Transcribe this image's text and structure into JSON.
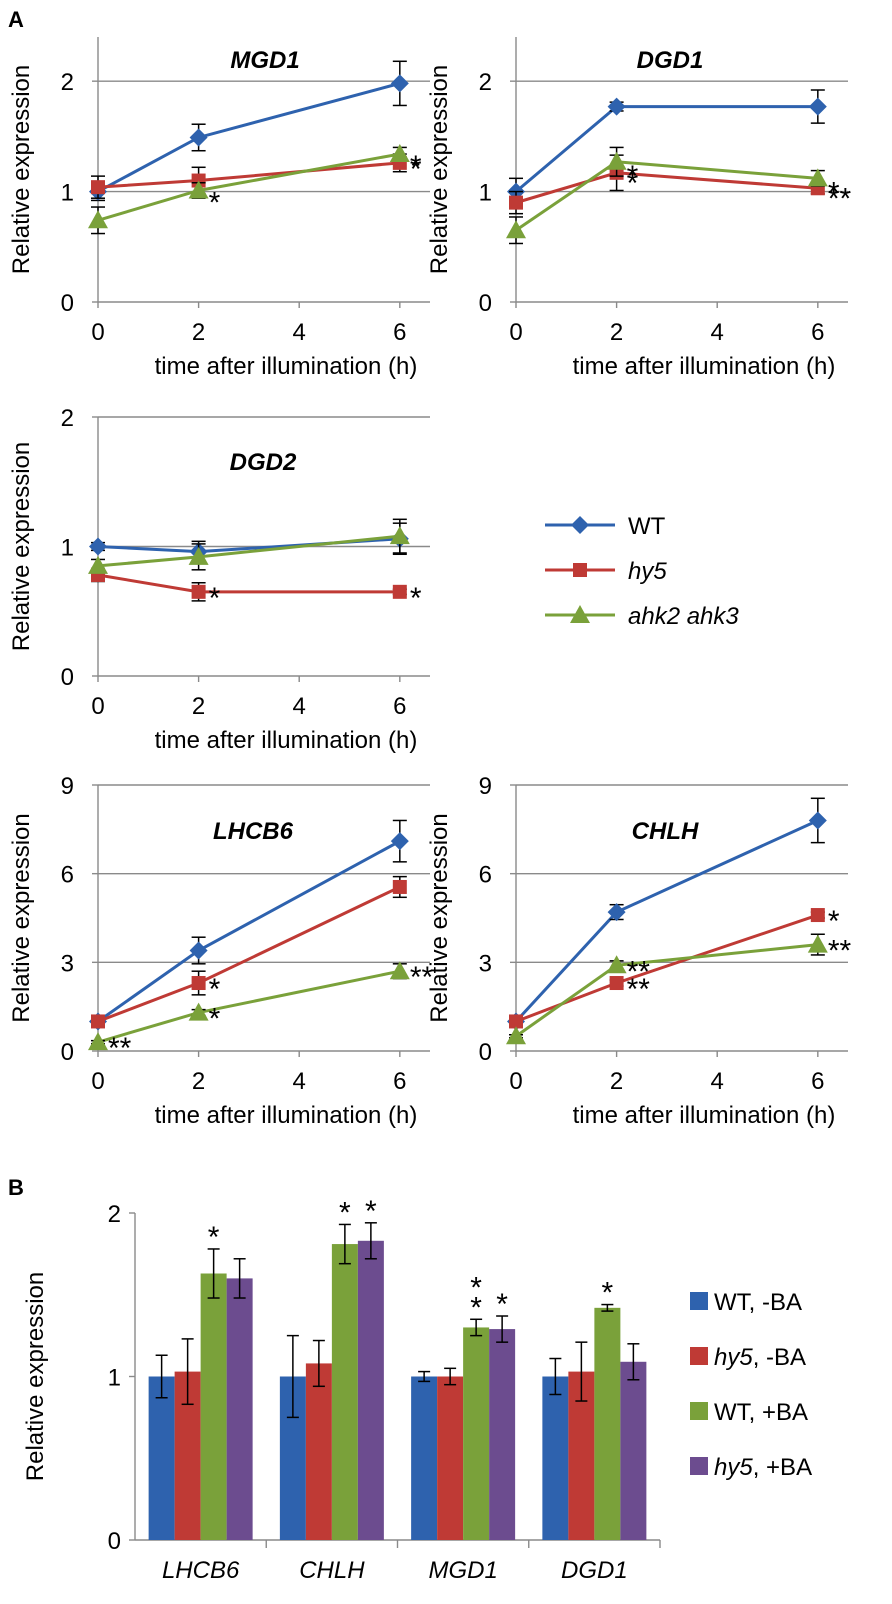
{
  "figure": {
    "panel_a_label": "A",
    "panel_b_label": "B"
  },
  "colors": {
    "wt": "#2e62ae",
    "hy5": "#bf3a35",
    "ahk": "#7aa13a",
    "wt_ba": "#7aa13a",
    "hy5_ba": "#6c4c8f"
  },
  "legend_a": {
    "items": [
      {
        "label": "WT",
        "italic": false,
        "marker": "diamond",
        "color_key": "wt"
      },
      {
        "label": "hy5",
        "italic": true,
        "marker": "square",
        "color_key": "hy5"
      },
      {
        "label": "ahk2 ahk3",
        "italic": true,
        "marker": "triangle",
        "color_key": "ahk"
      }
    ]
  },
  "legend_b": {
    "items": [
      {
        "genotype": "WT",
        "italic": false,
        "treatment": ", -BA",
        "color_key": "wt"
      },
      {
        "genotype": "hy5",
        "italic": true,
        "treatment": ", -BA",
        "color_key": "hy5"
      },
      {
        "genotype": "WT",
        "italic": false,
        "treatment": ", +BA",
        "color_key": "wt_ba"
      },
      {
        "genotype": "hy5",
        "italic": true,
        "treatment": ", +BA",
        "color_key": "hy5_ba"
      }
    ]
  },
  "chart_data": [
    {
      "id": "mgd1",
      "type": "line",
      "title": "MGD1",
      "xlabel": "time after illumination (h)",
      "ylabel": "Relative expression",
      "x": [
        0,
        2,
        6
      ],
      "xticks": [
        0,
        2,
        4,
        6
      ],
      "xlim": [
        0,
        6.6
      ],
      "ylim": [
        0,
        2.4
      ],
      "yticks": [
        0,
        1,
        2
      ],
      "grid": true,
      "series": [
        {
          "name": "WT",
          "color_key": "wt",
          "marker": "diamond",
          "values": [
            1.0,
            1.49,
            1.98
          ],
          "errors": [
            0.08,
            0.12,
            0.2
          ],
          "annotations": [
            "",
            "",
            ""
          ]
        },
        {
          "name": "hy5",
          "color_key": "hy5",
          "marker": "square",
          "values": [
            1.04,
            1.1,
            1.26
          ],
          "errors": [
            0.1,
            0.12,
            0.08
          ],
          "annotations": [
            "",
            "",
            "*"
          ]
        },
        {
          "name": "ahk2 ahk3",
          "color_key": "ahk",
          "marker": "triangle",
          "values": [
            0.74,
            1.01,
            1.34
          ],
          "errors": [
            0.12,
            0.07,
            0.06
          ],
          "annotations": [
            "",
            "*",
            "*"
          ]
        }
      ]
    },
    {
      "id": "dgd1",
      "type": "line",
      "title": "DGD1",
      "xlabel": "time after illumination (h)",
      "ylabel": "Relative expression",
      "x": [
        0,
        2,
        6
      ],
      "xticks": [
        0,
        2,
        4,
        6
      ],
      "xlim": [
        0,
        6.6
      ],
      "ylim": [
        0,
        2.4
      ],
      "yticks": [
        0,
        1,
        2
      ],
      "grid": true,
      "series": [
        {
          "name": "WT",
          "color_key": "wt",
          "marker": "diamond",
          "values": [
            1.0,
            1.77,
            1.77
          ],
          "errors": [
            0.12,
            0.04,
            0.15
          ],
          "annotations": [
            "",
            "",
            ""
          ]
        },
        {
          "name": "hy5",
          "color_key": "hy5",
          "marker": "square",
          "values": [
            0.9,
            1.17,
            1.03
          ],
          "errors": [
            0.1,
            0.16,
            0.05
          ],
          "annotations": [
            "",
            "*",
            "**"
          ]
        },
        {
          "name": "ahk2 ahk3",
          "color_key": "ahk",
          "marker": "triangle",
          "values": [
            0.65,
            1.27,
            1.12
          ],
          "errors": [
            0.12,
            0.13,
            0.07
          ],
          "annotations": [
            "",
            "*",
            "*"
          ]
        }
      ]
    },
    {
      "id": "dgd2",
      "type": "line",
      "title": "DGD2",
      "xlabel": "time after illumination (h)",
      "ylabel": "Relative expression",
      "x": [
        0,
        2,
        6
      ],
      "xticks": [
        0,
        2,
        4,
        6
      ],
      "xlim": [
        0,
        6.6
      ],
      "ylim": [
        0,
        2.0
      ],
      "yticks": [
        0,
        1,
        2
      ],
      "grid": true,
      "series": [
        {
          "name": "WT",
          "color_key": "wt",
          "marker": "diamond",
          "values": [
            1.0,
            0.96,
            1.06
          ],
          "errors": [
            0.03,
            0.08,
            0.12
          ],
          "annotations": [
            "",
            "",
            ""
          ]
        },
        {
          "name": "hy5",
          "color_key": "hy5",
          "marker": "square",
          "values": [
            0.78,
            0.65,
            0.65
          ],
          "errors": [
            0.05,
            0.07,
            0.02
          ],
          "annotations": [
            "",
            "*",
            "*"
          ]
        },
        {
          "name": "ahk2 ahk3",
          "color_key": "ahk",
          "marker": "triangle",
          "values": [
            0.85,
            0.92,
            1.08
          ],
          "errors": [
            0.05,
            0.1,
            0.13
          ],
          "annotations": [
            "",
            "",
            ""
          ]
        }
      ]
    },
    {
      "id": "lhcb6",
      "type": "line",
      "title": "LHCB6",
      "xlabel": "time after illumination (h)",
      "ylabel": "Relative expression",
      "x": [
        0,
        2,
        6
      ],
      "xticks": [
        0,
        2,
        4,
        6
      ],
      "xlim": [
        0,
        6.6
      ],
      "ylim": [
        0,
        9
      ],
      "yticks": [
        0,
        3,
        6,
        9
      ],
      "grid": true,
      "series": [
        {
          "name": "WT",
          "color_key": "wt",
          "marker": "diamond",
          "values": [
            1.0,
            3.4,
            7.1
          ],
          "errors": [
            0.1,
            0.45,
            0.7
          ],
          "annotations": [
            "",
            "",
            ""
          ]
        },
        {
          "name": "hy5",
          "color_key": "hy5",
          "marker": "square",
          "values": [
            1.0,
            2.3,
            5.55
          ],
          "errors": [
            0.1,
            0.4,
            0.35
          ],
          "annotations": [
            "",
            "*",
            ""
          ]
        },
        {
          "name": "ahk2 ahk3",
          "color_key": "ahk",
          "marker": "triangle",
          "values": [
            0.3,
            1.3,
            2.7
          ],
          "errors": [
            0.05,
            0.1,
            0.25
          ],
          "annotations": [
            "**",
            "*",
            "**"
          ]
        }
      ]
    },
    {
      "id": "chlh",
      "type": "line",
      "title": "CHLH",
      "xlabel": "time after illumination (h)",
      "ylabel": "Relative expression",
      "x": [
        0,
        2,
        6
      ],
      "xticks": [
        0,
        2,
        4,
        6
      ],
      "xlim": [
        0,
        6.6
      ],
      "ylim": [
        0,
        9
      ],
      "yticks": [
        0,
        3,
        6,
        9
      ],
      "grid": true,
      "series": [
        {
          "name": "WT",
          "color_key": "wt",
          "marker": "diamond",
          "values": [
            1.0,
            4.7,
            7.8
          ],
          "errors": [
            0.1,
            0.25,
            0.75
          ],
          "annotations": [
            "",
            "",
            ""
          ]
        },
        {
          "name": "hy5",
          "color_key": "hy5",
          "marker": "square",
          "values": [
            1.0,
            2.3,
            4.6
          ],
          "errors": [
            0.1,
            0.1,
            0.1
          ],
          "annotations": [
            "",
            "**",
            "*"
          ]
        },
        {
          "name": "ahk2 ahk3",
          "color_key": "ahk",
          "marker": "triangle",
          "values": [
            0.5,
            2.9,
            3.6
          ],
          "errors": [
            0.05,
            0.15,
            0.35
          ],
          "annotations": [
            "",
            "**",
            "**"
          ]
        }
      ]
    },
    {
      "id": "panel_b",
      "type": "bar",
      "ylabel": "Relative expression",
      "categories": [
        "LHCB6",
        "CHLH",
        "MGD1",
        "DGD1"
      ],
      "ylim": [
        0,
        2
      ],
      "yticks": [
        0,
        1,
        2
      ],
      "grid": false,
      "series": [
        {
          "name": "WT, -BA",
          "color_key": "wt",
          "values": [
            1.0,
            1.0,
            1.0,
            1.0
          ],
          "errors": [
            0.13,
            0.25,
            0.03,
            0.11
          ],
          "annotations": [
            "",
            "",
            "",
            ""
          ]
        },
        {
          "name": "hy5, -BA",
          "color_key": "hy5",
          "values": [
            1.03,
            1.08,
            1.0,
            1.03
          ],
          "errors": [
            0.2,
            0.14,
            0.05,
            0.18
          ],
          "annotations": [
            "",
            "",
            "",
            ""
          ]
        },
        {
          "name": "WT, +BA",
          "color_key": "wt_ba",
          "values": [
            1.63,
            1.81,
            1.3,
            1.42
          ],
          "errors": [
            0.15,
            0.12,
            0.05,
            0.02
          ],
          "annotations": [
            "*",
            "*",
            "**",
            "*"
          ]
        },
        {
          "name": "hy5, +BA",
          "color_key": "hy5_ba",
          "values": [
            1.6,
            1.83,
            1.29,
            1.09
          ],
          "errors": [
            0.12,
            0.11,
            0.08,
            0.11
          ],
          "annotations": [
            "",
            "*",
            "*",
            ""
          ]
        }
      ]
    }
  ]
}
